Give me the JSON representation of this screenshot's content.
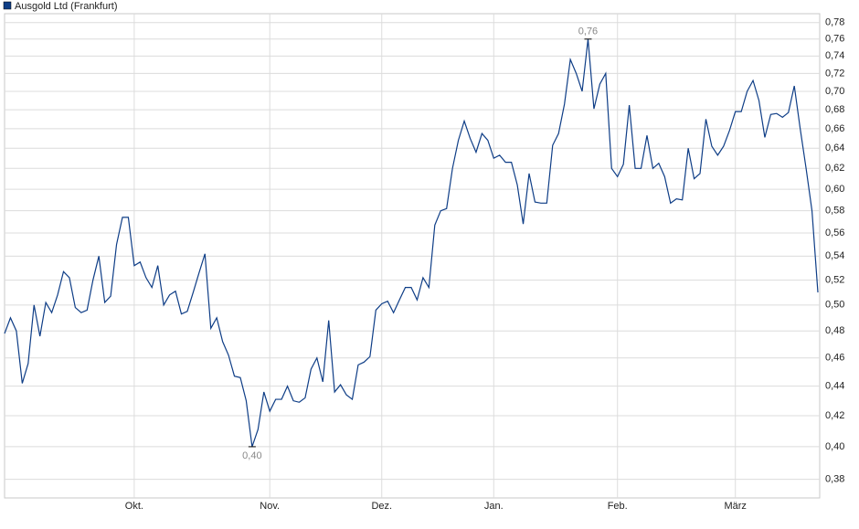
{
  "chart_data": {
    "type": "line",
    "log": true,
    "grid": true,
    "legend": "top-left",
    "categories": [
      null,
      null,
      null,
      null,
      null,
      null,
      null,
      null,
      null,
      null,
      null,
      null,
      null,
      null,
      null,
      null,
      null,
      null,
      null,
      null,
      null,
      null,
      "Okt.",
      null,
      null,
      null,
      null,
      null,
      null,
      null,
      null,
      null,
      null,
      null,
      null,
      null,
      null,
      null,
      null,
      null,
      null,
      null,
      null,
      null,
      null,
      "Nov.",
      null,
      null,
      null,
      null,
      null,
      null,
      null,
      null,
      null,
      null,
      null,
      null,
      null,
      null,
      null,
      null,
      null,
      null,
      "Dez.",
      null,
      null,
      null,
      null,
      null,
      null,
      null,
      null,
      null,
      null,
      null,
      null,
      null,
      null,
      null,
      null,
      null,
      null,
      "Jan.",
      null,
      null,
      null,
      null,
      null,
      null,
      null,
      null,
      null,
      null,
      null,
      null,
      null,
      null,
      null,
      null,
      null,
      null,
      null,
      null,
      "Feb.",
      null,
      null,
      null,
      null,
      null,
      null,
      null,
      null,
      null,
      null,
      null,
      null,
      null,
      null,
      null,
      null,
      null,
      null,
      null,
      "März",
      null,
      null,
      null,
      null,
      null,
      null,
      null,
      null,
      null,
      null,
      null,
      null,
      null,
      null
    ],
    "series": [
      {
        "name": "Ausgold Ltd (Frankfurt)",
        "color": "#0e3d86",
        "values": [
          0.478,
          0.49,
          0.48,
          0.442,
          0.456,
          0.5,
          0.476,
          0.502,
          0.494,
          0.508,
          0.527,
          0.522,
          0.498,
          0.494,
          0.496,
          0.52,
          0.54,
          0.502,
          0.507,
          0.55,
          0.574,
          0.574,
          0.532,
          0.535,
          0.522,
          0.514,
          0.532,
          0.5,
          0.508,
          0.511,
          0.493,
          0.495,
          0.51,
          0.526,
          0.542,
          0.482,
          0.49,
          0.472,
          0.462,
          0.447,
          0.446,
          0.43,
          0.4,
          0.411,
          0.436,
          0.423,
          0.431,
          0.431,
          0.44,
          0.43,
          0.429,
          0.432,
          0.452,
          0.46,
          0.443,
          0.488,
          0.436,
          0.441,
          0.434,
          0.431,
          0.455,
          0.457,
          0.461,
          0.496,
          0.501,
          0.503,
          0.494,
          0.504,
          0.514,
          0.514,
          0.504,
          0.522,
          0.514,
          0.567,
          0.58,
          0.582,
          0.62,
          0.648,
          0.668,
          0.65,
          0.636,
          0.655,
          0.648,
          0.63,
          0.633,
          0.626,
          0.626,
          0.604,
          0.568,
          0.615,
          0.588,
          0.587,
          0.587,
          0.643,
          0.655,
          0.686,
          0.736,
          0.72,
          0.7,
          0.76,
          0.681,
          0.708,
          0.72,
          0.62,
          0.612,
          0.624,
          0.685,
          0.62,
          0.62,
          0.653,
          0.62,
          0.625,
          0.612,
          0.587,
          0.591,
          0.59,
          0.64,
          0.61,
          0.615,
          0.67,
          0.642,
          0.633,
          0.642,
          0.658,
          0.678,
          0.678,
          0.7,
          0.712,
          0.69,
          0.651,
          0.675,
          0.676,
          0.672,
          0.677,
          0.706,
          0.66,
          0.62,
          0.58,
          0.51
        ],
        "value_labels": [
          null,
          null,
          null,
          null,
          null,
          null,
          null,
          null,
          null,
          null,
          null,
          null,
          null,
          null,
          null,
          null,
          null,
          null,
          null,
          null,
          null,
          null,
          null,
          null,
          null,
          null,
          null,
          null,
          null,
          null,
          null,
          null,
          null,
          null,
          null,
          null,
          null,
          null,
          null,
          null,
          null,
          null,
          "0,40",
          null,
          null,
          null,
          null,
          null,
          null,
          null,
          null,
          null,
          null,
          null,
          null,
          null,
          null,
          null,
          null,
          null,
          null,
          null,
          null,
          null,
          null,
          null,
          null,
          null,
          null,
          null,
          null,
          null,
          null,
          null,
          null,
          null,
          null,
          null,
          null,
          null,
          null,
          null,
          null,
          null,
          null,
          null,
          null,
          null,
          null,
          null,
          null,
          null,
          null,
          null,
          null,
          null,
          null,
          null,
          null,
          "0,76",
          null,
          null,
          null,
          null,
          null,
          null,
          null,
          null,
          null,
          null,
          null,
          null,
          null,
          null,
          null,
          null,
          null,
          null,
          null,
          null,
          null,
          null,
          null,
          null,
          null,
          null,
          null,
          null,
          null,
          null,
          null,
          null,
          null,
          null,
          null,
          null,
          null,
          null,
          null
        ]
      }
    ],
    "ylim": [
      0.369,
      0.791
    ],
    "yticks": [
      {
        "value": 0.38,
        "label": "0,38"
      },
      {
        "value": 0.4,
        "label": "0,40"
      },
      {
        "value": 0.42,
        "label": "0,42"
      },
      {
        "value": 0.44,
        "label": "0,44"
      },
      {
        "value": 0.46,
        "label": "0,46"
      },
      {
        "value": 0.48,
        "label": "0,48"
      },
      {
        "value": 0.5,
        "label": "0,50"
      },
      {
        "value": 0.52,
        "label": "0,52"
      },
      {
        "value": 0.54,
        "label": "0,54"
      },
      {
        "value": 0.56,
        "label": "0,56"
      },
      {
        "value": 0.58,
        "label": "0,58"
      },
      {
        "value": 0.6,
        "label": "0,60"
      },
      {
        "value": 0.62,
        "label": "0,62"
      },
      {
        "value": 0.64,
        "label": "0,64"
      },
      {
        "value": 0.66,
        "label": "0,66"
      },
      {
        "value": 0.68,
        "label": "0,68"
      },
      {
        "value": 0.7,
        "label": "0,70"
      },
      {
        "value": 0.72,
        "label": "0,72"
      },
      {
        "value": 0.74,
        "label": "0,74"
      },
      {
        "value": 0.76,
        "label": "0,76"
      },
      {
        "value": 0.78,
        "label": "0,78"
      }
    ]
  }
}
